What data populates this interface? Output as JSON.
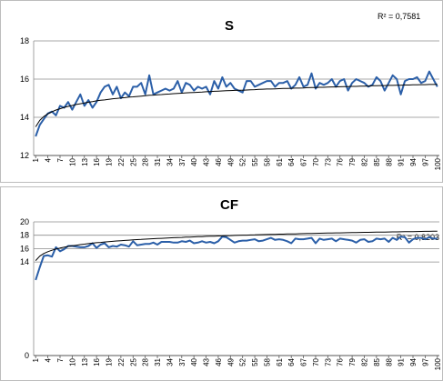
{
  "chart_data": [
    {
      "type": "line",
      "title": "S",
      "annotation": "R² = 0,7581",
      "xlabel": "",
      "ylabel": "",
      "ylim": [
        12,
        18
      ],
      "yticks": [
        12,
        14,
        16,
        18
      ],
      "grid": true,
      "legend": "none",
      "x_tick_labels": [
        "1",
        "4",
        "7",
        "10",
        "13",
        "16",
        "19",
        "22",
        "25",
        "28",
        "31",
        "34",
        "37",
        "40",
        "43",
        "46",
        "49",
        "52",
        "55",
        "58",
        "61",
        "64",
        "67",
        "70",
        "73",
        "76",
        "79",
        "82",
        "85",
        "88",
        "91",
        "94",
        "97",
        "100"
      ],
      "series": [
        {
          "color": "#2b5fa8",
          "values": [
            13.0,
            13.6,
            13.9,
            14.2,
            14.3,
            14.1,
            14.6,
            14.5,
            14.8,
            14.4,
            14.8,
            15.2,
            14.6,
            14.9,
            14.5,
            14.8,
            15.3,
            15.6,
            15.7,
            15.2,
            15.6,
            15.0,
            15.3,
            15.1,
            15.6,
            15.6,
            15.8,
            15.2,
            16.2,
            15.2,
            15.3,
            15.4,
            15.5,
            15.4,
            15.5,
            15.9,
            15.3,
            15.8,
            15.7,
            15.4,
            15.6,
            15.5,
            15.6,
            15.2,
            15.9,
            15.5,
            16.1,
            15.6,
            15.8,
            15.5,
            15.4,
            15.3,
            15.9,
            15.9,
            15.6,
            15.7,
            15.8,
            15.9,
            15.9,
            15.6,
            15.8,
            15.8,
            15.9,
            15.5,
            15.7,
            16.1,
            15.6,
            15.7,
            16.3,
            15.5,
            15.8,
            15.7,
            15.8,
            16.0,
            15.6,
            15.9,
            16.0,
            15.4,
            15.8,
            16.0,
            15.9,
            15.8,
            15.6,
            15.7,
            16.1,
            15.9,
            15.4,
            15.8,
            16.2,
            16.0,
            15.2,
            15.9,
            16.0,
            16.0,
            16.1,
            15.8,
            15.9,
            16.4,
            16.0,
            15.6
          ]
        },
        {
          "name": "",
          "style": "trendline",
          "color": "#000000",
          "values": [
            13.5,
            13.84,
            14.04,
            14.18,
            14.29,
            14.38,
            14.45,
            14.52,
            14.57,
            14.62,
            14.67,
            14.71,
            14.75,
            14.79,
            14.82,
            14.86,
            14.89,
            14.91,
            14.94,
            14.97,
            14.99,
            15.01,
            15.03,
            15.06,
            15.07,
            15.09,
            15.11,
            15.13,
            15.15,
            15.16,
            15.18,
            15.19,
            15.21,
            15.22,
            15.24,
            15.25,
            15.26,
            15.28,
            15.29,
            15.3,
            15.31,
            15.32,
            15.34,
            15.35,
            15.36,
            15.37,
            15.38,
            15.39,
            15.4,
            15.41,
            15.42,
            15.42,
            15.43,
            15.44,
            15.45,
            15.46,
            15.47,
            15.48,
            15.48,
            15.49,
            15.5,
            15.51,
            15.51,
            15.52,
            15.53,
            15.53,
            15.54,
            15.55,
            15.56,
            15.56,
            15.57,
            15.57,
            15.58,
            15.59,
            15.59,
            15.6,
            15.61,
            15.61,
            15.62,
            15.62,
            15.63,
            15.63,
            15.64,
            15.65,
            15.65,
            15.66,
            15.66,
            15.67,
            15.67,
            15.68,
            15.68,
            15.69,
            15.69,
            15.7,
            15.7,
            15.71,
            15.71,
            15.72,
            15.72,
            15.73
          ]
        }
      ]
    },
    {
      "type": "line",
      "title": "CF",
      "annotation": "R² = 0,8203",
      "xlabel": "",
      "ylabel": "",
      "ylim": [
        0,
        20
      ],
      "yticks": [
        0,
        14,
        16,
        18,
        20
      ],
      "grid": true,
      "legend": "none",
      "x_tick_labels": [
        "1",
        "4",
        "7",
        "10",
        "13",
        "16",
        "19",
        "22",
        "25",
        "28",
        "31",
        "34",
        "37",
        "40",
        "43",
        "46",
        "49",
        "52",
        "55",
        "58",
        "61",
        "64",
        "67",
        "70",
        "73",
        "76",
        "79",
        "82",
        "85",
        "88",
        "91",
        "94",
        "97",
        "100"
      ],
      "series": [
        {
          "color": "#2b5fa8",
          "values": [
            11.3,
            13.2,
            14.9,
            15.0,
            14.8,
            16.2,
            15.6,
            15.9,
            16.4,
            16.4,
            16.3,
            16.2,
            16.2,
            16.4,
            16.8,
            16.1,
            16.6,
            16.8,
            16.2,
            16.4,
            16.3,
            16.6,
            16.5,
            16.3,
            17.1,
            16.5,
            16.6,
            16.7,
            16.7,
            16.9,
            16.6,
            17.0,
            17.0,
            17.0,
            16.9,
            16.9,
            17.1,
            17.0,
            17.2,
            16.8,
            16.9,
            17.1,
            16.9,
            17.0,
            16.8,
            17.1,
            17.8,
            17.7,
            17.3,
            16.9,
            17.1,
            17.2,
            17.2,
            17.3,
            17.4,
            17.1,
            17.2,
            17.4,
            17.6,
            17.3,
            17.4,
            17.3,
            17.1,
            16.8,
            17.5,
            17.4,
            17.4,
            17.5,
            17.6,
            16.8,
            17.5,
            17.3,
            17.4,
            17.5,
            17.1,
            17.5,
            17.4,
            17.3,
            17.2,
            16.9,
            17.3,
            17.4,
            17.0,
            17.1,
            17.5,
            17.4,
            17.5,
            17.0,
            17.6,
            17.3,
            17.8,
            17.7,
            16.9,
            17.4,
            17.6,
            17.6,
            17.4,
            17.7,
            17.5,
            17.5
          ]
        },
        {
          "name": "",
          "style": "trendline",
          "color": "#000000",
          "values": [
            14.2,
            14.87,
            15.26,
            15.54,
            15.75,
            15.93,
            16.08,
            16.2,
            16.32,
            16.42,
            16.51,
            16.6,
            16.67,
            16.75,
            16.81,
            16.88,
            16.93,
            16.99,
            17.04,
            17.09,
            17.14,
            17.18,
            17.23,
            17.27,
            17.31,
            17.35,
            17.38,
            17.42,
            17.45,
            17.48,
            17.51,
            17.54,
            17.57,
            17.6,
            17.63,
            17.66,
            17.68,
            17.71,
            17.73,
            17.76,
            17.78,
            17.8,
            17.83,
            17.85,
            17.87,
            17.89,
            17.91,
            17.93,
            17.95,
            17.97,
            17.99,
            18.01,
            18.02,
            18.04,
            18.06,
            18.08,
            18.09,
            18.11,
            18.12,
            18.14,
            18.16,
            18.17,
            18.19,
            18.2,
            18.21,
            18.23,
            18.24,
            18.26,
            18.27,
            18.28,
            18.3,
            18.31,
            18.32,
            18.33,
            18.35,
            18.36,
            18.37,
            18.38,
            18.39,
            18.41,
            18.42,
            18.43,
            18.44,
            18.45,
            18.46,
            18.47,
            18.48,
            18.49,
            18.5,
            18.51,
            18.52,
            18.53,
            18.54,
            18.55,
            18.56,
            18.57,
            18.58,
            18.59,
            18.6,
            18.61
          ]
        }
      ]
    }
  ]
}
